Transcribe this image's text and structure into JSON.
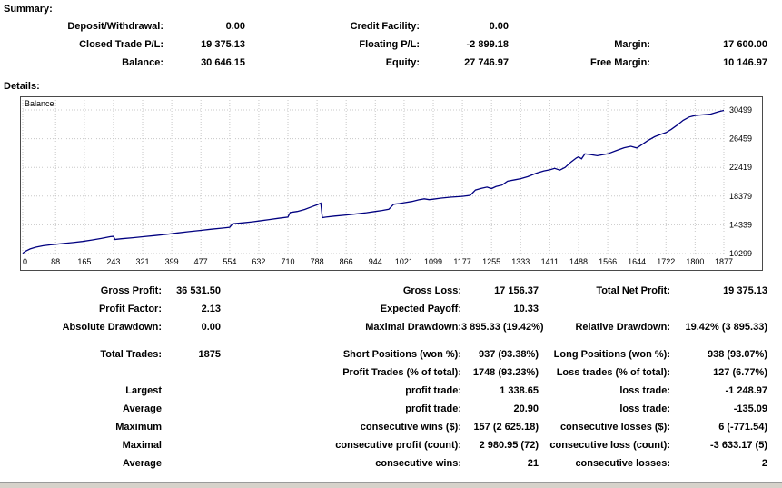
{
  "summary": {
    "heading": "Summary:",
    "rows": [
      [
        "Deposit/Withdrawal:",
        "0.00",
        "Credit Facility:",
        "0.00",
        "",
        ""
      ],
      [
        "Closed Trade P/L:",
        "19 375.13",
        "Floating P/L:",
        "-2 899.18",
        "Margin:",
        "17 600.00"
      ],
      [
        "Balance:",
        "30 646.15",
        "Equity:",
        "27 746.97",
        "Free Margin:",
        "10 146.97"
      ]
    ]
  },
  "details": {
    "heading": "Details:",
    "groups": [
      [
        [
          "Gross Profit:",
          "36 531.50",
          "Gross Loss:",
          "17 156.37",
          "Total Net Profit:",
          "19 375.13"
        ],
        [
          "Profit Factor:",
          "2.13",
          "Expected Payoff:",
          "10.33",
          "",
          ""
        ],
        [
          "Absolute Drawdown:",
          "0.00",
          "Maximal Drawdown:",
          "3 895.33 (19.42%)",
          "Relative Drawdown:",
          "19.42% (3 895.33)"
        ]
      ],
      [
        [
          "Total Trades:",
          "1875",
          "Short Positions (won %):",
          "937 (93.38%)",
          "Long Positions (won %):",
          "938 (93.07%)"
        ],
        [
          "",
          "",
          "Profit Trades (% of total):",
          "1748 (93.23%)",
          "Loss trades (% of total):",
          "127 (6.77%)"
        ],
        [
          "Largest",
          "",
          "profit trade:",
          "1 338.65",
          "loss trade:",
          "-1 248.97"
        ],
        [
          "Average",
          "",
          "profit trade:",
          "20.90",
          "loss trade:",
          "-135.09"
        ],
        [
          "Maximum",
          "",
          "consecutive wins ($):",
          "157 (2 625.18)",
          "consecutive losses ($):",
          "6 (-771.54)"
        ],
        [
          "Maximal",
          "",
          "consecutive profit (count):",
          "2 980.95 (72)",
          "consecutive loss (count):",
          "-3 633.17 (5)"
        ],
        [
          "Average",
          "",
          "consecutive wins:",
          "21",
          "consecutive losses:",
          "2"
        ]
      ]
    ]
  },
  "chart_data": {
    "type": "line",
    "title": "Balance",
    "series_name": "Balance",
    "x_range": [
      0,
      1877
    ],
    "y_range": [
      10299,
      30499
    ],
    "x_ticks": [
      0,
      88,
      165,
      243,
      321,
      399,
      477,
      554,
      632,
      710,
      788,
      866,
      944,
      1021,
      1099,
      1177,
      1255,
      1333,
      1411,
      1488,
      1566,
      1644,
      1722,
      1800,
      1877
    ],
    "y_ticks": [
      10299,
      14339,
      18379,
      22419,
      26459,
      30499
    ],
    "line_color": "#000080",
    "grid": "dotted",
    "legend_position": "top-left-inside",
    "points": [
      [
        0,
        10350
      ],
      [
        8,
        10650
      ],
      [
        20,
        10950
      ],
      [
        35,
        11200
      ],
      [
        55,
        11400
      ],
      [
        75,
        11520
      ],
      [
        88,
        11600
      ],
      [
        110,
        11720
      ],
      [
        135,
        11850
      ],
      [
        160,
        12000
      ],
      [
        185,
        12200
      ],
      [
        210,
        12420
      ],
      [
        235,
        12680
      ],
      [
        243,
        12720
      ],
      [
        247,
        12280
      ],
      [
        265,
        12380
      ],
      [
        295,
        12520
      ],
      [
        325,
        12680
      ],
      [
        355,
        12830
      ],
      [
        385,
        13000
      ],
      [
        415,
        13200
      ],
      [
        445,
        13380
      ],
      [
        477,
        13560
      ],
      [
        505,
        13720
      ],
      [
        535,
        13880
      ],
      [
        554,
        14000
      ],
      [
        562,
        14480
      ],
      [
        590,
        14620
      ],
      [
        615,
        14760
      ],
      [
        632,
        14880
      ],
      [
        660,
        15080
      ],
      [
        685,
        15260
      ],
      [
        710,
        15420
      ],
      [
        716,
        16080
      ],
      [
        735,
        16220
      ],
      [
        755,
        16500
      ],
      [
        772,
        16850
      ],
      [
        788,
        17150
      ],
      [
        798,
        17380
      ],
      [
        802,
        15350
      ],
      [
        812,
        15420
      ],
      [
        835,
        15560
      ],
      [
        866,
        15720
      ],
      [
        895,
        15880
      ],
      [
        920,
        16040
      ],
      [
        944,
        16220
      ],
      [
        962,
        16360
      ],
      [
        980,
        16520
      ],
      [
        993,
        17230
      ],
      [
        1008,
        17330
      ],
      [
        1021,
        17440
      ],
      [
        1042,
        17620
      ],
      [
        1060,
        17860
      ],
      [
        1075,
        18000
      ],
      [
        1088,
        17880
      ],
      [
        1099,
        17940
      ],
      [
        1118,
        18080
      ],
      [
        1145,
        18220
      ],
      [
        1177,
        18340
      ],
      [
        1198,
        18480
      ],
      [
        1212,
        19240
      ],
      [
        1228,
        19480
      ],
      [
        1243,
        19640
      ],
      [
        1255,
        19440
      ],
      [
        1267,
        19720
      ],
      [
        1283,
        19930
      ],
      [
        1298,
        20480
      ],
      [
        1318,
        20680
      ],
      [
        1333,
        20840
      ],
      [
        1352,
        21120
      ],
      [
        1375,
        21600
      ],
      [
        1395,
        21920
      ],
      [
        1411,
        22080
      ],
      [
        1424,
        22280
      ],
      [
        1438,
        22030
      ],
      [
        1452,
        22420
      ],
      [
        1468,
        23180
      ],
      [
        1482,
        23740
      ],
      [
        1488,
        23900
      ],
      [
        1496,
        23620
      ],
      [
        1505,
        24330
      ],
      [
        1518,
        24240
      ],
      [
        1538,
        24060
      ],
      [
        1566,
        24330
      ],
      [
        1588,
        24760
      ],
      [
        1610,
        25180
      ],
      [
        1628,
        25380
      ],
      [
        1644,
        25140
      ],
      [
        1656,
        25560
      ],
      [
        1672,
        26140
      ],
      [
        1692,
        26740
      ],
      [
        1708,
        27060
      ],
      [
        1722,
        27320
      ],
      [
        1736,
        27760
      ],
      [
        1752,
        28360
      ],
      [
        1768,
        29040
      ],
      [
        1784,
        29500
      ],
      [
        1800,
        29720
      ],
      [
        1812,
        29780
      ],
      [
        1826,
        29830
      ],
      [
        1840,
        29900
      ],
      [
        1852,
        30080
      ],
      [
        1864,
        30280
      ],
      [
        1877,
        30430
      ]
    ]
  }
}
